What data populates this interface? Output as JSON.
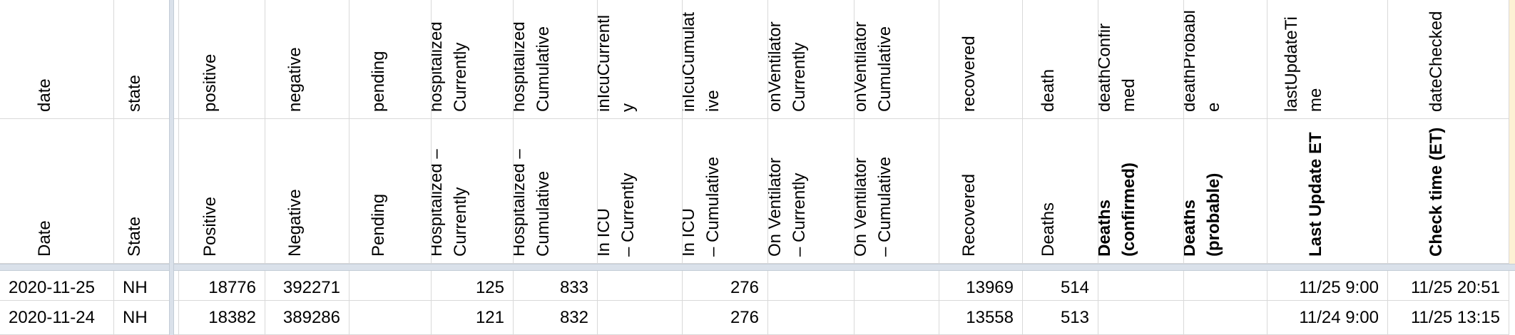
{
  "columns": [
    {
      "key": "date",
      "field": "date",
      "label": "Date"
    },
    {
      "key": "state",
      "field": "state",
      "label": "State"
    },
    {
      "key": "positive",
      "field": "positive",
      "label": "Positive"
    },
    {
      "key": "negative",
      "field": "negative",
      "label": "Negative"
    },
    {
      "key": "pending",
      "field": "pending",
      "label": "Pending"
    },
    {
      "key": "hospitalizedCurrently",
      "field": "hospitalized\nCurrently",
      "label": "Hospitalized –\nCurrently"
    },
    {
      "key": "hospitalizedCumulative",
      "field": "hospitalized\nCumulative",
      "label": "Hospitalized –\nCumulative"
    },
    {
      "key": "inIcuCurrently",
      "field": "inIcuCurrentl\ny",
      "label": "In ICU\n– Currently"
    },
    {
      "key": "inIcuCumulative",
      "field": "inIcuCumulat\nive",
      "label": "In ICU\n– Cumulative"
    },
    {
      "key": "onVentilatorCurrently",
      "field": "onVentilator\nCurrently",
      "label": "On Ventilator\n– Currently"
    },
    {
      "key": "onVentilatorCumulative",
      "field": "onVentilator\nCumulative",
      "label": "On Ventilator\n– Cumulative"
    },
    {
      "key": "recovered",
      "field": "recovered",
      "label": "Recovered"
    },
    {
      "key": "death",
      "field": "death",
      "label": "Deaths"
    },
    {
      "key": "deathConfirmed",
      "field": "deathConfir\nmed",
      "label": "Deaths\n(confirmed)",
      "bold": true
    },
    {
      "key": "deathProbable",
      "field": "deathProbabl\ne",
      "label": "Deaths\n(probable)",
      "bold": true
    },
    {
      "key": "lastUpdateTime",
      "field": "lastUpdateTi\nme",
      "label": "Last Update ET",
      "bold": true
    },
    {
      "key": "dateChecked",
      "field": "dateChecked",
      "label": "Check time (ET)",
      "bold": true
    }
  ],
  "rows": [
    {
      "date": "2020-11-25",
      "state": "NH",
      "positive": "18776",
      "negative": "392271",
      "pending": "",
      "hospitalizedCurrently": "125",
      "hospitalizedCumulative": "833",
      "inIcuCurrently": "",
      "inIcuCumulative": "276",
      "onVentilatorCurrently": "",
      "onVentilatorCumulative": "",
      "recovered": "13969",
      "death": "514",
      "deathConfirmed": "",
      "deathProbable": "",
      "lastUpdateTime": "11/25 9:00",
      "dateChecked": "11/25 20:51"
    },
    {
      "date": "2020-11-24",
      "state": "NH",
      "positive": "18382",
      "negative": "389286",
      "pending": "",
      "hospitalizedCurrently": "121",
      "hospitalizedCumulative": "832",
      "inIcuCurrently": "",
      "inIcuCumulative": "276",
      "onVentilatorCurrently": "",
      "onVentilatorCumulative": "",
      "recovered": "13558",
      "death": "513",
      "deathConfirmed": "",
      "deathProbable": "",
      "lastUpdateTime": "11/24 9:00",
      "dateChecked": "11/25 13:15"
    }
  ]
}
